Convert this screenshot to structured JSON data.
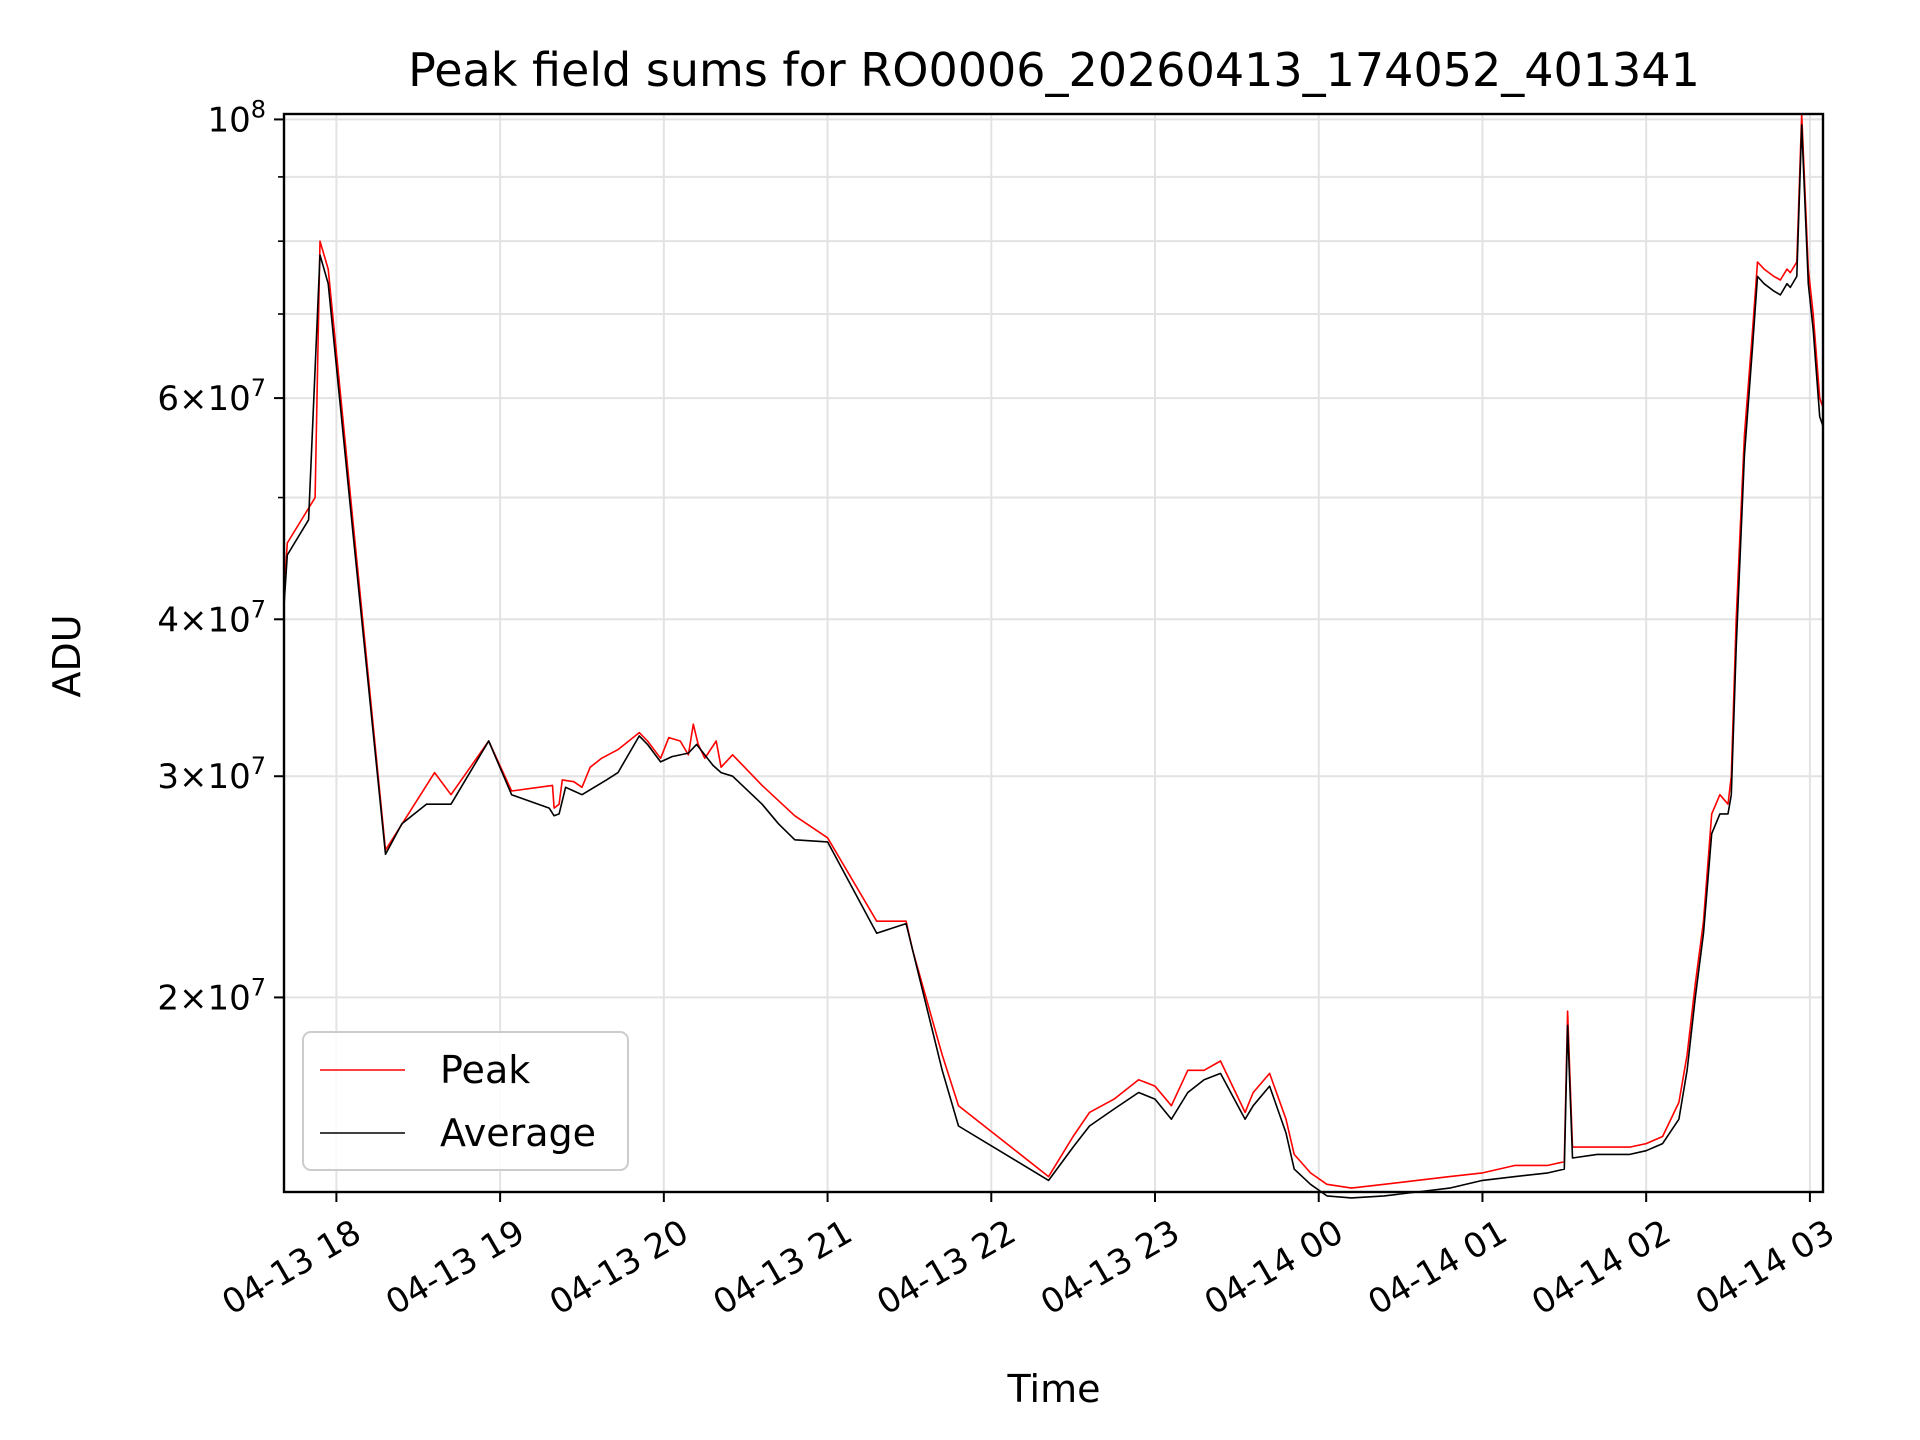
{
  "chart_data": {
    "type": "line",
    "title": "Peak field sums for RO0006_20260413_174052_401341",
    "xlabel": "Time",
    "ylabel": "ADU",
    "yscale": "log",
    "ylim": [
      14000000,
      101000000
    ],
    "xlim_hours": [
      17.68,
      27.08
    ],
    "grid": true,
    "legend_position": "lower left",
    "x_ticks": [
      {
        "label": "04-13 18",
        "hour": 18
      },
      {
        "label": "04-13 19",
        "hour": 19
      },
      {
        "label": "04-13 20",
        "hour": 20
      },
      {
        "label": "04-13 21",
        "hour": 21
      },
      {
        "label": "04-13 22",
        "hour": 22
      },
      {
        "label": "04-13 23",
        "hour": 23
      },
      {
        "label": "04-14 00",
        "hour": 24
      },
      {
        "label": "04-14 01",
        "hour": 25
      },
      {
        "label": "04-14 02",
        "hour": 26
      },
      {
        "label": "04-14 03",
        "hour": 27
      }
    ],
    "y_ticks": [
      {
        "base": "2",
        "exp": "7",
        "value": 20000000
      },
      {
        "base": "3",
        "exp": "7",
        "value": 30000000
      },
      {
        "base": "4",
        "exp": "7",
        "value": 40000000
      },
      {
        "base": "6",
        "exp": "7",
        "value": 60000000
      },
      {
        "base": "10",
        "exp": "8",
        "value": 100000000,
        "pure_power": true
      }
    ],
    "y_minor_ticks": [
      50000000,
      70000000,
      80000000,
      90000000
    ],
    "series": [
      {
        "name": "Peak",
        "color": "#ff0000",
        "x": [
          17.68,
          17.7,
          17.87,
          17.9,
          17.95,
          18.1,
          18.3,
          18.6,
          18.7,
          18.93,
          19.07,
          19.32,
          19.33,
          19.36,
          19.38,
          19.45,
          19.5,
          19.55,
          19.62,
          19.72,
          19.85,
          19.9,
          19.98,
          20.03,
          20.1,
          20.15,
          20.18,
          20.21,
          20.25,
          20.32,
          20.35,
          20.42,
          20.6,
          20.8,
          21.0,
          21.3,
          21.48,
          21.52,
          21.7,
          21.8,
          22.35,
          22.5,
          22.6,
          22.75,
          22.9,
          23.0,
          23.1,
          23.2,
          23.3,
          23.4,
          23.55,
          23.6,
          23.7,
          23.8,
          23.85,
          23.95,
          24.05,
          24.2,
          24.4,
          24.6,
          24.8,
          25.0,
          25.2,
          25.4,
          25.5,
          25.52,
          25.55,
          25.7,
          25.9,
          26.0,
          26.1,
          26.2,
          26.25,
          26.3,
          26.35,
          26.4,
          26.45,
          26.5,
          26.52,
          26.55,
          26.6,
          26.65,
          26.68,
          26.72,
          26.78,
          26.82,
          26.86,
          26.88,
          26.92,
          26.95,
          26.99,
          27.02,
          27.06,
          27.08
        ],
        "values": [
          42000000,
          46000000,
          50000000,
          80000000,
          76000000,
          48000000,
          26200000,
          30200000,
          29000000,
          32000000,
          29200000,
          29500000,
          28300000,
          28500000,
          29800000,
          29700000,
          29400000,
          30500000,
          31000000,
          31500000,
          32500000,
          32000000,
          31000000,
          32200000,
          32000000,
          31200000,
          33000000,
          31800000,
          31000000,
          32000000,
          30500000,
          31200000,
          29500000,
          27900000,
          26800000,
          23000000,
          23000000,
          21800000,
          18000000,
          16400000,
          14400000,
          15500000,
          16200000,
          16600000,
          17200000,
          17000000,
          16400000,
          17500000,
          17500000,
          17800000,
          16200000,
          16800000,
          17400000,
          16000000,
          15000000,
          14500000,
          14200000,
          14100000,
          14200000,
          14300000,
          14400000,
          14500000,
          14700000,
          14700000,
          14800000,
          19500000,
          15200000,
          15200000,
          15200000,
          15300000,
          15500000,
          16500000,
          18000000,
          20500000,
          23000000,
          28000000,
          29000000,
          28500000,
          30000000,
          40000000,
          56000000,
          68000000,
          77000000,
          76000000,
          75000000,
          74500000,
          76000000,
          75500000,
          77000000,
          101000000,
          76000000,
          70000000,
          60000000,
          59000000
        ]
      },
      {
        "name": "Average",
        "color": "#000000",
        "x": [
          17.68,
          17.7,
          17.83,
          17.9,
          17.95,
          18.1,
          18.3,
          18.4,
          18.55,
          18.7,
          18.93,
          19.07,
          19.3,
          19.33,
          19.36,
          19.4,
          19.45,
          19.5,
          19.65,
          19.72,
          19.85,
          19.9,
          19.98,
          20.05,
          20.15,
          20.2,
          20.3,
          20.35,
          20.42,
          20.6,
          20.7,
          20.8,
          21.0,
          21.3,
          21.48,
          21.52,
          21.7,
          21.8,
          22.35,
          22.5,
          22.6,
          22.75,
          22.9,
          23.0,
          23.1,
          23.2,
          23.3,
          23.4,
          23.55,
          23.6,
          23.7,
          23.8,
          23.85,
          23.95,
          24.05,
          24.2,
          24.4,
          24.6,
          24.8,
          25.0,
          25.2,
          25.4,
          25.5,
          25.52,
          25.55,
          25.7,
          25.9,
          26.0,
          26.1,
          26.2,
          26.25,
          26.3,
          26.35,
          26.4,
          26.45,
          26.5,
          26.52,
          26.55,
          26.6,
          26.65,
          26.68,
          26.72,
          26.78,
          26.82,
          26.86,
          26.88,
          26.92,
          26.95,
          26.99,
          27.02,
          27.06,
          27.08
        ],
        "values": [
          41000000,
          45000000,
          48000000,
          78000000,
          74000000,
          47000000,
          26000000,
          27500000,
          28500000,
          28500000,
          32000000,
          29000000,
          28300000,
          27900000,
          28000000,
          29400000,
          29200000,
          29000000,
          29800000,
          30200000,
          32300000,
          31800000,
          30800000,
          31100000,
          31300000,
          31800000,
          30600000,
          30200000,
          30000000,
          28500000,
          27500000,
          26700000,
          26600000,
          22500000,
          22900000,
          21800000,
          17500000,
          15800000,
          14300000,
          15200000,
          15800000,
          16300000,
          16800000,
          16600000,
          16000000,
          16800000,
          17200000,
          17400000,
          16000000,
          16400000,
          17000000,
          15600000,
          14600000,
          14200000,
          13900000,
          13850000,
          13900000,
          14000000,
          14100000,
          14300000,
          14400000,
          14500000,
          14600000,
          19000000,
          14900000,
          15000000,
          15000000,
          15100000,
          15300000,
          16000000,
          17500000,
          20000000,
          22500000,
          27000000,
          28000000,
          28000000,
          29000000,
          38000000,
          54000000,
          66000000,
          75000000,
          74000000,
          73000000,
          72500000,
          74000000,
          73500000,
          75000000,
          99000000,
          74000000,
          68000000,
          58000000,
          57000000
        ]
      }
    ]
  }
}
